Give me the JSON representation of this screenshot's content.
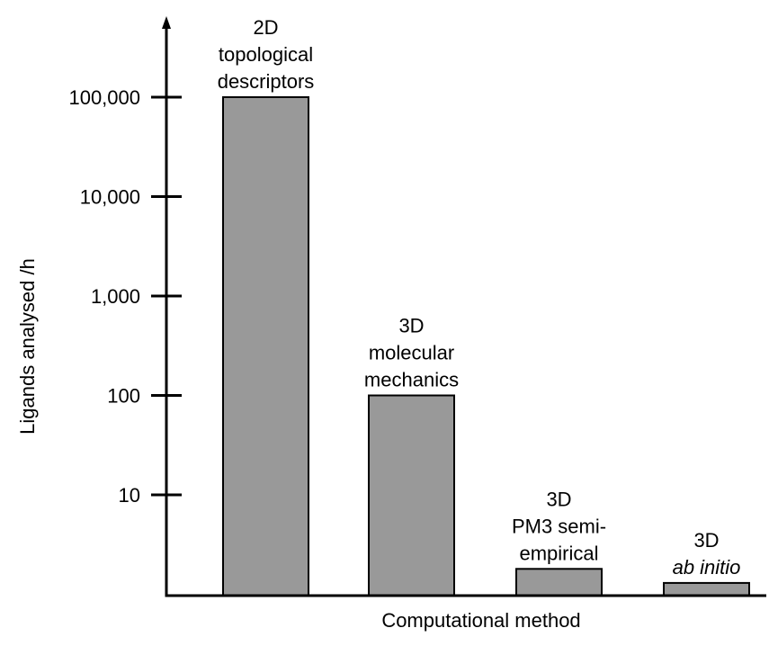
{
  "chart_data": {
    "type": "bar",
    "xlabel": "Computational method",
    "ylabel": "Ligands analysed /h",
    "y_scale": "log",
    "yticks": [
      {
        "value": 10,
        "label": "10"
      },
      {
        "value": 100,
        "label": "100"
      },
      {
        "value": 1000,
        "label": "1,000"
      },
      {
        "value": 10000,
        "label": "10,000"
      },
      {
        "value": 100000,
        "label": "100,000"
      }
    ],
    "categories": [
      {
        "lines": [
          {
            "text": "2D",
            "italic": false
          },
          {
            "text": "topological",
            "italic": false
          },
          {
            "text": "descriptors",
            "italic": false
          }
        ]
      },
      {
        "lines": [
          {
            "text": "3D",
            "italic": false
          },
          {
            "text": "molecular",
            "italic": false
          },
          {
            "text": "mechanics",
            "italic": false
          }
        ]
      },
      {
        "lines": [
          {
            "text": "3D",
            "italic": false
          },
          {
            "text": "PM3 semi-",
            "italic": false
          },
          {
            "text": "empirical",
            "italic": false
          }
        ]
      },
      {
        "lines": [
          {
            "text": "3D",
            "italic": false
          },
          {
            "text": "ab initio",
            "italic": true
          }
        ]
      }
    ],
    "values": [
      100000,
      100,
      1.8,
      1.3
    ],
    "bar_color": "#999999",
    "bar_stroke": "#000000",
    "grid": false,
    "legend": "none"
  }
}
